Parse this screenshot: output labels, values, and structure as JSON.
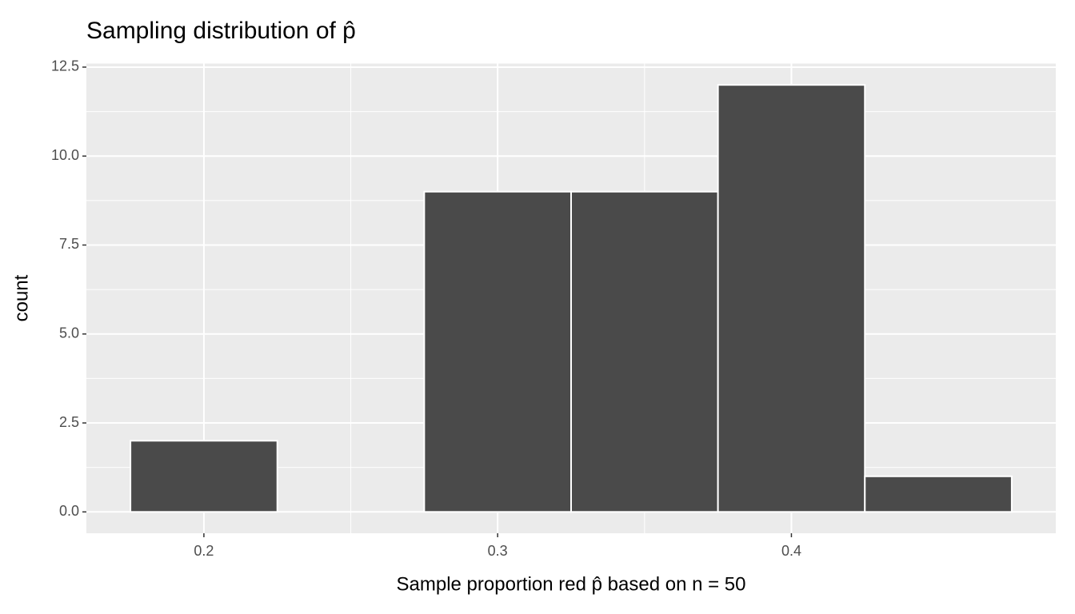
{
  "chart_data": {
    "type": "histogram",
    "title": "Sampling distribution of p̂",
    "xlabel": "Sample proportion red p̂ based on n = 50",
    "ylabel": "count",
    "bins": [
      0.175,
      0.225,
      0.275,
      0.325,
      0.375,
      0.425,
      0.475
    ],
    "values": [
      2,
      0,
      9,
      9,
      12,
      1
    ],
    "color": "#4a4a4a",
    "xlim": [
      0.16,
      0.49
    ],
    "ylim": [
      -0.6,
      12.6
    ],
    "xticks": [
      0.2,
      0.3,
      0.4
    ],
    "yticks": [
      {
        "value": 0,
        "label": "0.0"
      },
      2.5,
      {
        "value": 5,
        "label": "5.0"
      },
      7.5,
      {
        "value": 10,
        "label": "10.0"
      },
      12.5
    ],
    "grid": true
  }
}
